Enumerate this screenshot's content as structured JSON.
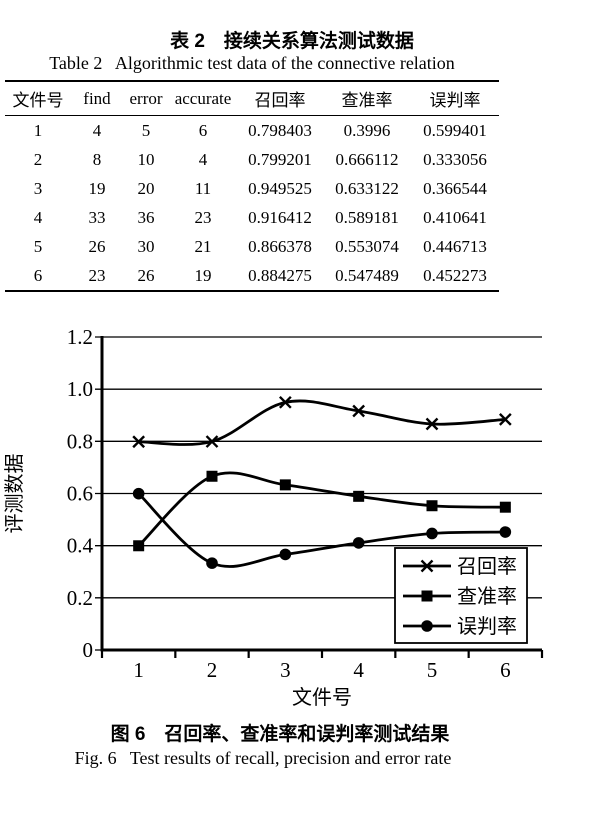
{
  "page": {
    "background": "#ffffff",
    "ink": "#000000"
  },
  "table_section": {
    "caption_zh": "表 2　接续关系算法测试数据",
    "caption_en": "Table 2   Algorithmic test data of the connective relation",
    "columns": [
      "文件号",
      "find",
      "error",
      "accurate",
      "召回率",
      "查准率",
      "误判率"
    ],
    "rows": [
      [
        "1",
        "4",
        "5",
        "6",
        "0.798403",
        "0.3996",
        "0.599401"
      ],
      [
        "2",
        "8",
        "10",
        "4",
        "0.799201",
        "0.666112",
        "0.333056"
      ],
      [
        "3",
        "19",
        "20",
        "11",
        "0.949525",
        "0.633122",
        "0.366544"
      ],
      [
        "4",
        "33",
        "36",
        "23",
        "0.916412",
        "0.589181",
        "0.410641"
      ],
      [
        "5",
        "26",
        "30",
        "21",
        "0.866378",
        "0.553074",
        "0.446713"
      ],
      [
        "6",
        "23",
        "26",
        "19",
        "0.884275",
        "0.547489",
        "0.452273"
      ]
    ]
  },
  "figure_section": {
    "caption_zh": "图 6　召回率、查准率和误判率测试结果",
    "caption_en": "Fig. 6   Test results of recall, precision and error rate"
  },
  "chart_data": {
    "type": "line",
    "smoothed": true,
    "categories": [
      "1",
      "2",
      "3",
      "4",
      "5",
      "6"
    ],
    "series": [
      {
        "name": "召回率",
        "marker": "x",
        "values": [
          0.798403,
          0.799201,
          0.949525,
          0.916412,
          0.866378,
          0.884275
        ]
      },
      {
        "name": "查准率",
        "marker": "square",
        "values": [
          0.3996,
          0.666112,
          0.633122,
          0.589181,
          0.553074,
          0.547489
        ]
      },
      {
        "name": "误判率",
        "marker": "circle",
        "values": [
          0.599401,
          0.333056,
          0.366544,
          0.410641,
          0.446713,
          0.452273
        ]
      }
    ],
    "xlabel": "文件号",
    "ylabel": "评测数据",
    "ylim": [
      0,
      1.2
    ],
    "ytick_step": 0.2,
    "ytick_labels": [
      "0",
      "0.2",
      "0.4",
      "0.6",
      "0.8",
      "1.0",
      "1.2"
    ],
    "grid": true,
    "legend_position": "inside-lower-right",
    "line_color": "#000000"
  }
}
